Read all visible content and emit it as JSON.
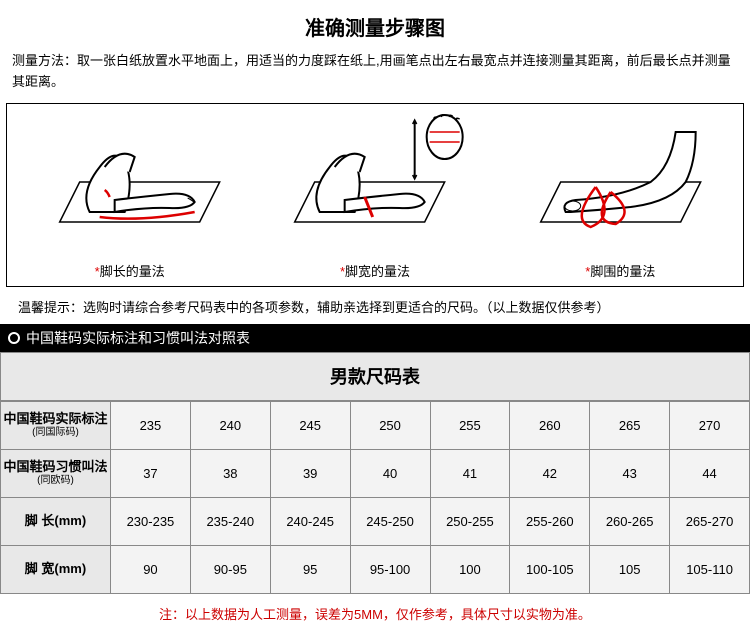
{
  "title": "准确测量步骤图",
  "method": "测量方法：取一张白纸放置水平地面上，用适当的力度踩在纸上,用画笔点出左右最宽点并连接测量其距离，前后最长点并测量其距离。",
  "diagrams": [
    {
      "label": "脚长的量法"
    },
    {
      "label": "脚宽的量法"
    },
    {
      "label": "脚围的量法"
    }
  ],
  "tip": "温馨提示：选购时请综合参考尺码表中的各项参数，辅助亲选择到更适合的尺码。（以上数据仅供参考）",
  "barTitle": "中国鞋码实际标注和习惯叫法对照表",
  "table": {
    "title": "男款尺码表",
    "rows": [
      {
        "head": "中国鞋码实际标注",
        "sub": "(同国际码)",
        "cells": [
          "235",
          "240",
          "245",
          "250",
          "255",
          "260",
          "265",
          "270"
        ]
      },
      {
        "head": "中国鞋码习惯叫法",
        "sub": "(同欧码)",
        "cells": [
          "37",
          "38",
          "39",
          "40",
          "41",
          "42",
          "43",
          "44"
        ]
      },
      {
        "head": "脚 长(mm)",
        "sub": "",
        "cells": [
          "230-235",
          "235-240",
          "240-245",
          "245-250",
          "250-255",
          "255-260",
          "260-265",
          "265-270"
        ]
      },
      {
        "head": "脚 宽(mm)",
        "sub": "",
        "cells": [
          "90",
          "90-95",
          "95",
          "95-100",
          "100",
          "100-105",
          "105",
          "105-110"
        ]
      }
    ]
  },
  "footnote": "注：以上数据为人工测量，误差为5MM，仅作参考，具体尺寸以实物为准。",
  "colors": {
    "accent": "#d00",
    "border": "#888",
    "headBg": "#e8e8e8",
    "cellBg": "#f3f3f3"
  }
}
